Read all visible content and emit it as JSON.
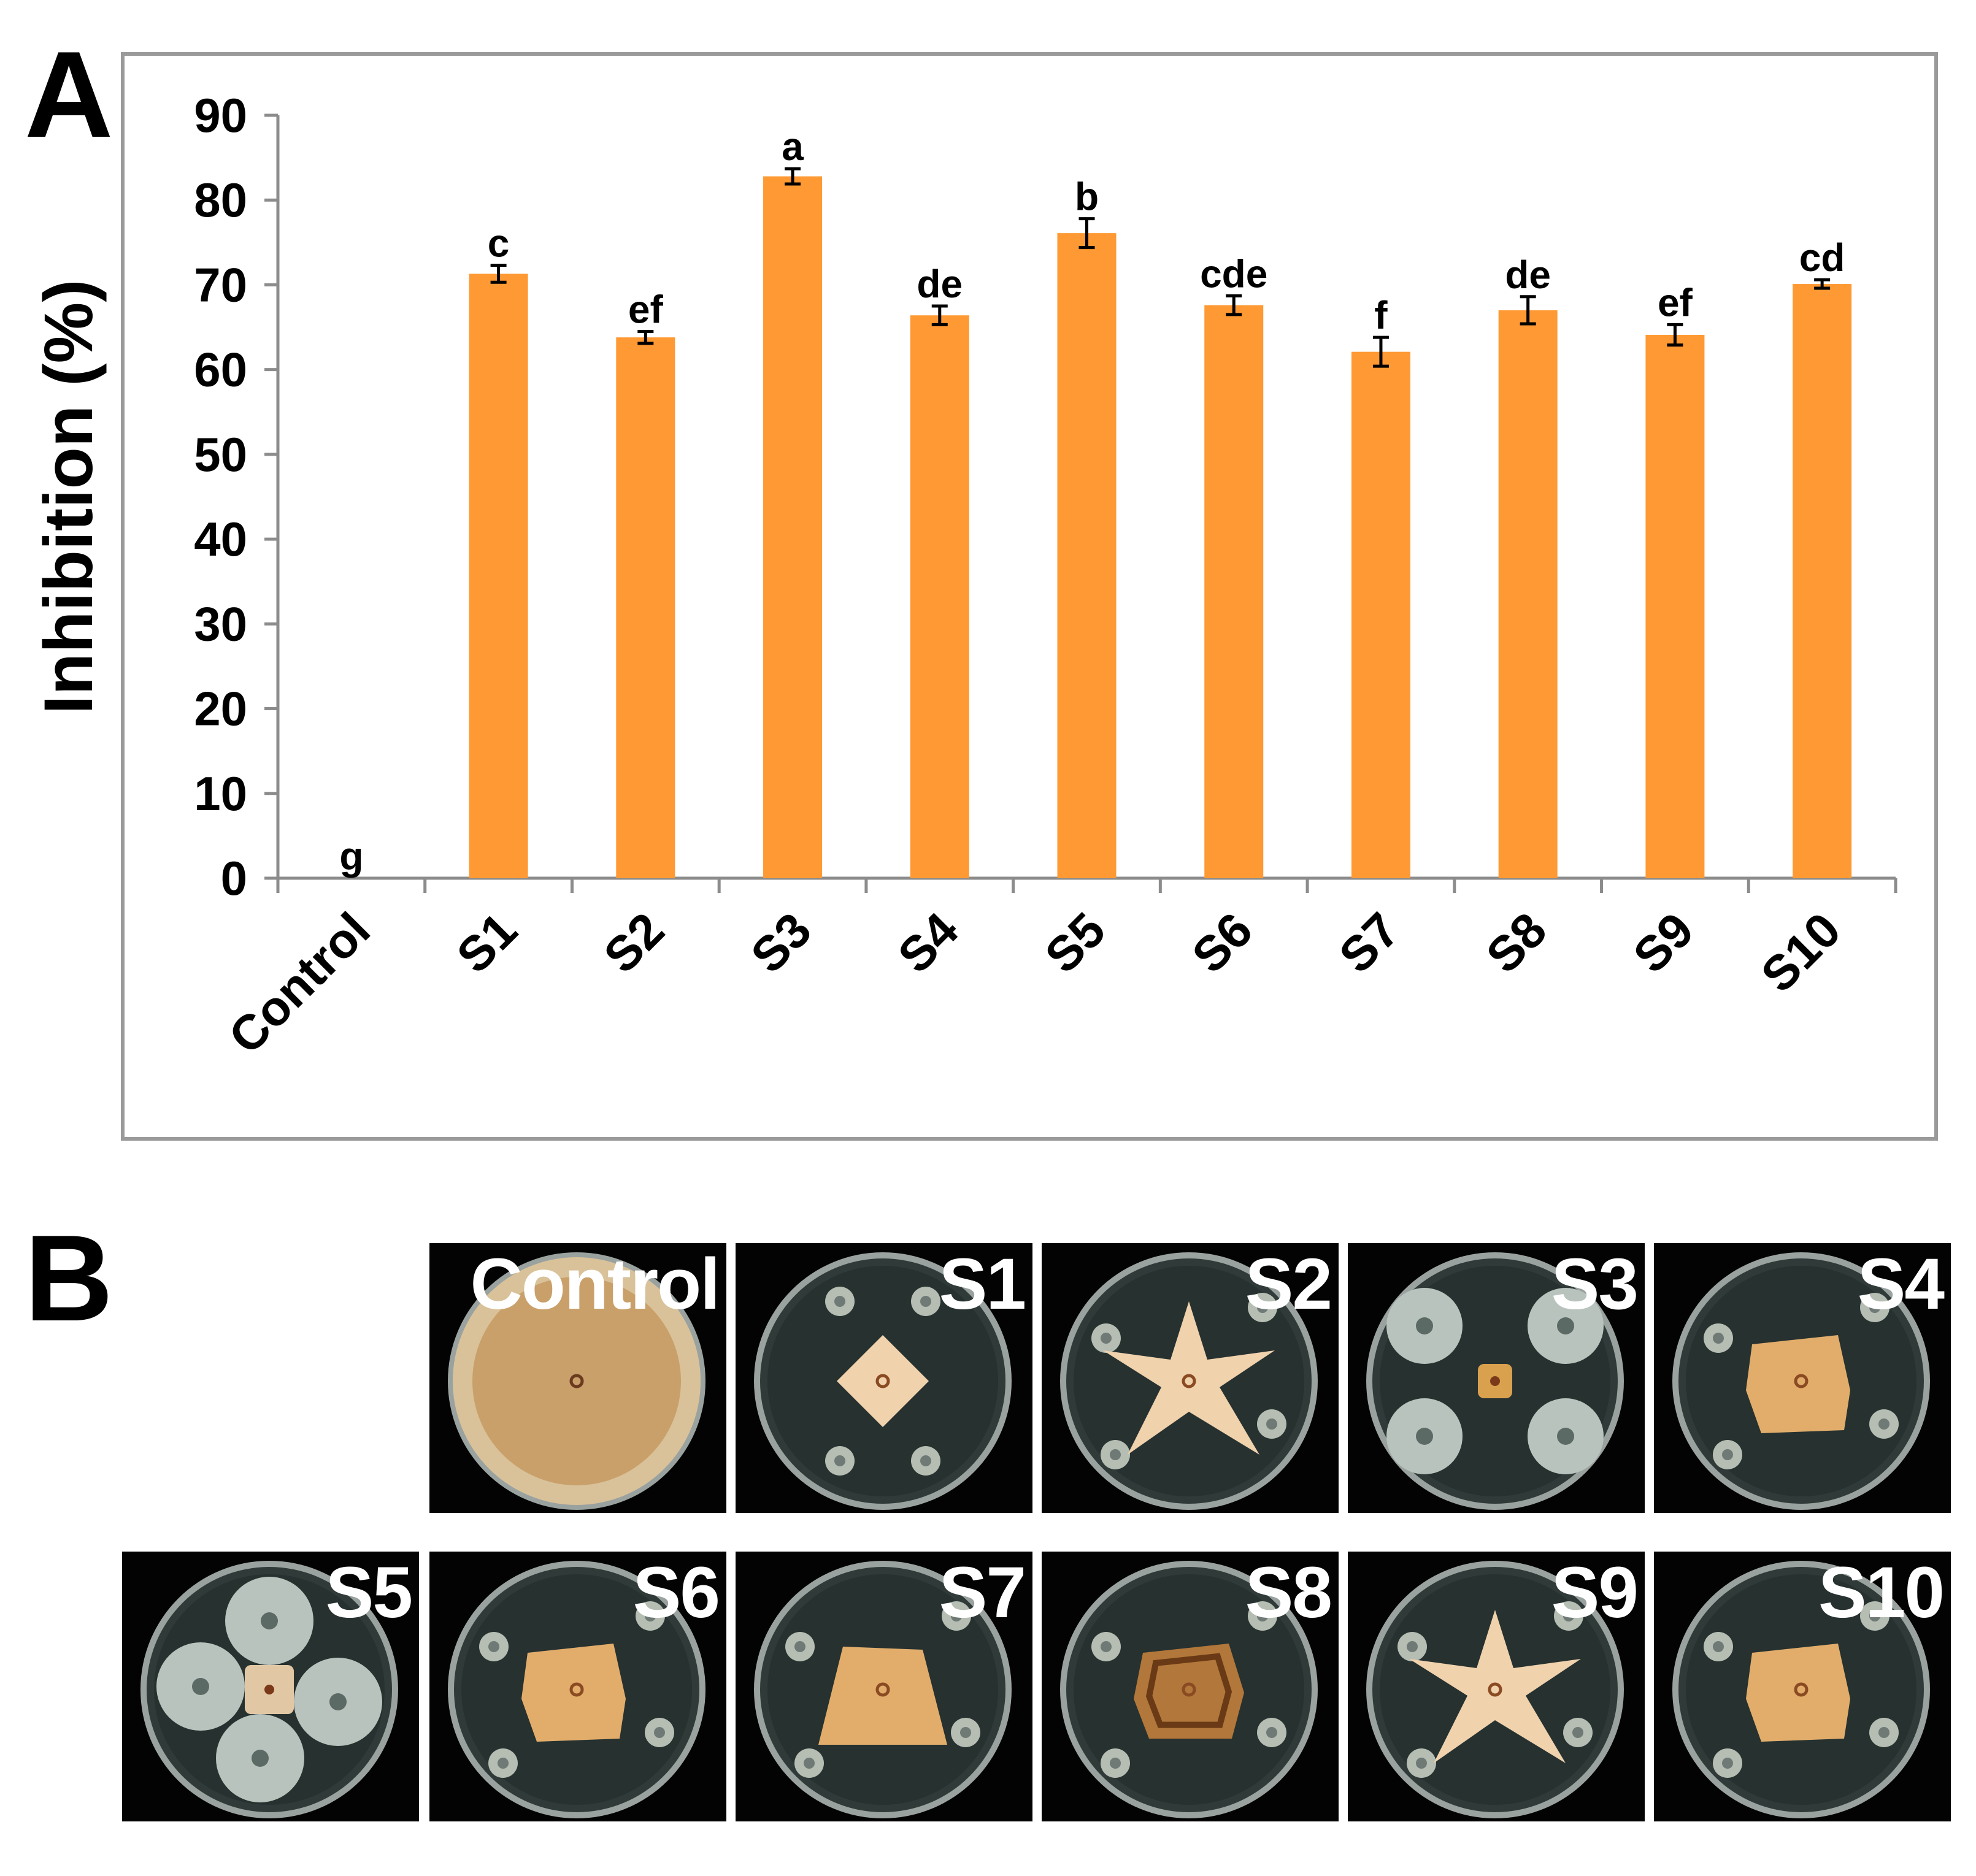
{
  "panels": {
    "a_label": "A",
    "b_label": "B"
  },
  "colors": {
    "bar": "#FF9933",
    "axis": "#8c8c8c",
    "frame": "#9a9a9a"
  },
  "chart_data": {
    "type": "bar",
    "title": "",
    "xlabel": "",
    "ylabel": "Inhibition (%)",
    "ylim": [
      0,
      90
    ],
    "yticks": [
      0,
      10,
      20,
      30,
      40,
      50,
      60,
      70,
      80,
      90
    ],
    "categories": [
      "Control",
      "S1",
      "S2",
      "S3",
      "S4",
      "S5",
      "S6",
      "S7",
      "S8",
      "S9",
      "S10"
    ],
    "values": [
      0,
      71.3,
      63.8,
      82.8,
      66.4,
      76.1,
      67.6,
      62.1,
      67.0,
      64.1,
      70.1
    ],
    "errors": [
      0,
      1.0,
      0.7,
      0.9,
      1.1,
      1.7,
      1.1,
      1.7,
      1.6,
      1.2,
      0.5
    ],
    "significance_letters": [
      "g",
      "c",
      "ef",
      "a",
      "de",
      "b",
      "cde",
      "f",
      "de",
      "ef",
      "cd"
    ],
    "grid": false,
    "legend": "none"
  },
  "photos": [
    {
      "label": "Control",
      "type": "control"
    },
    {
      "label": "S1",
      "type": "diamond"
    },
    {
      "label": "S2",
      "type": "star"
    },
    {
      "label": "S3",
      "type": "s3"
    },
    {
      "label": "S4",
      "type": "square"
    },
    {
      "label": "S5",
      "type": "s5"
    },
    {
      "label": "S6",
      "type": "square"
    },
    {
      "label": "S7",
      "type": "trapezoid"
    },
    {
      "label": "S8",
      "type": "dark-square"
    },
    {
      "label": "S9",
      "type": "star"
    },
    {
      "label": "S10",
      "type": "square"
    }
  ]
}
